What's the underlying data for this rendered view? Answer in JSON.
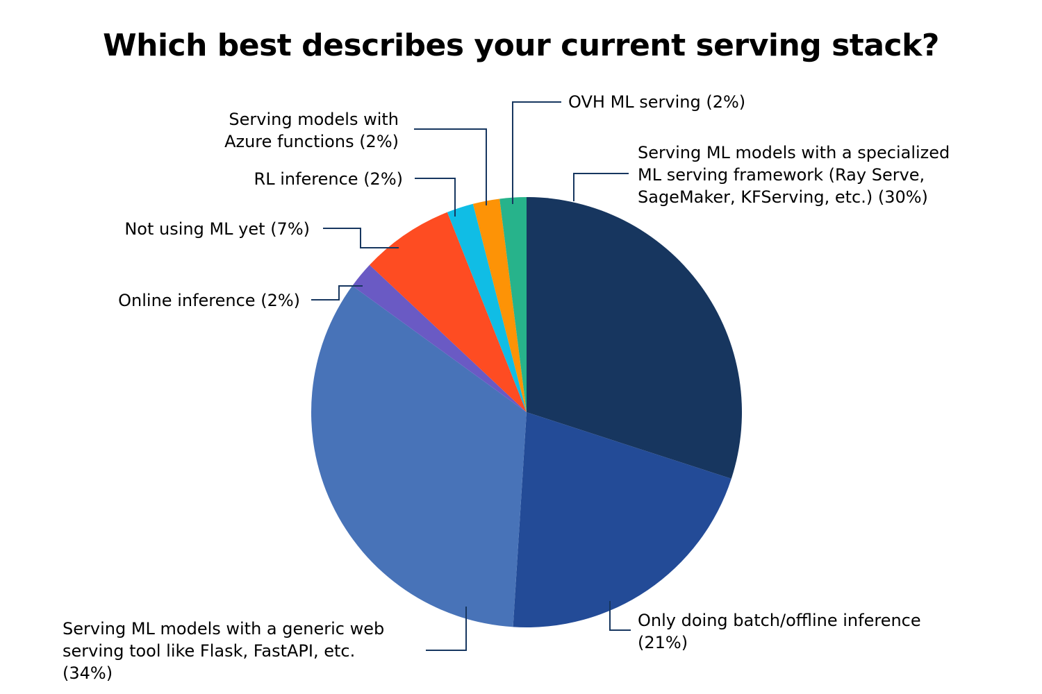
{
  "chart_data": {
    "type": "pie",
    "title": "Which best describes your current serving stack?",
    "start": "12 o'clock, clockwise",
    "slices": [
      {
        "key": "specialized",
        "label": "Serving ML models with a specialized ML serving framework (Ray Serve, SageMaker, KFServing, etc.) (30%)",
        "label_lines": [
          "Serving ML models with a specialized",
          "ML serving framework (Ray Serve,",
          "SageMaker, KFServing, etc.) (30%)"
        ],
        "value": 30,
        "color": "#17365f"
      },
      {
        "key": "batch",
        "label": "Only doing batch/offline inference (21%)",
        "label_lines": [
          "Only doing batch/offline inference",
          "(21%)"
        ],
        "value": 21,
        "color": "#234b97"
      },
      {
        "key": "generic-web",
        "label": "Serving ML models with a generic web serving tool like Flask, FastAPI, etc. (34%)",
        "label_lines": [
          "Serving ML models with a generic web",
          "serving tool like Flask, FastAPI, etc.",
          "(34%)"
        ],
        "value": 34,
        "color": "#4873b8"
      },
      {
        "key": "online",
        "label": "Online inference (2%)",
        "label_lines": [
          "Online inference (2%)"
        ],
        "value": 2,
        "color": "#6a5ac4"
      },
      {
        "key": "not-using",
        "label": "Not using ML yet (7%)",
        "label_lines": [
          "Not using ML yet (7%)"
        ],
        "value": 7,
        "color": "#fe4c22"
      },
      {
        "key": "rl",
        "label": "RL inference (2%)",
        "label_lines": [
          "RL inference (2%)"
        ],
        "value": 2,
        "color": "#10bde5"
      },
      {
        "key": "azure",
        "label": "Serving models with Azure functions (2%)",
        "label_lines": [
          "Serving models with",
          "Azure functions (2%)"
        ],
        "value": 2,
        "color": "#fd9306"
      },
      {
        "key": "ovh",
        "label": "OVH ML serving (2%)",
        "label_lines": [
          "OVH ML serving (2%)"
        ],
        "value": 2,
        "color": "#27b38b"
      }
    ]
  }
}
